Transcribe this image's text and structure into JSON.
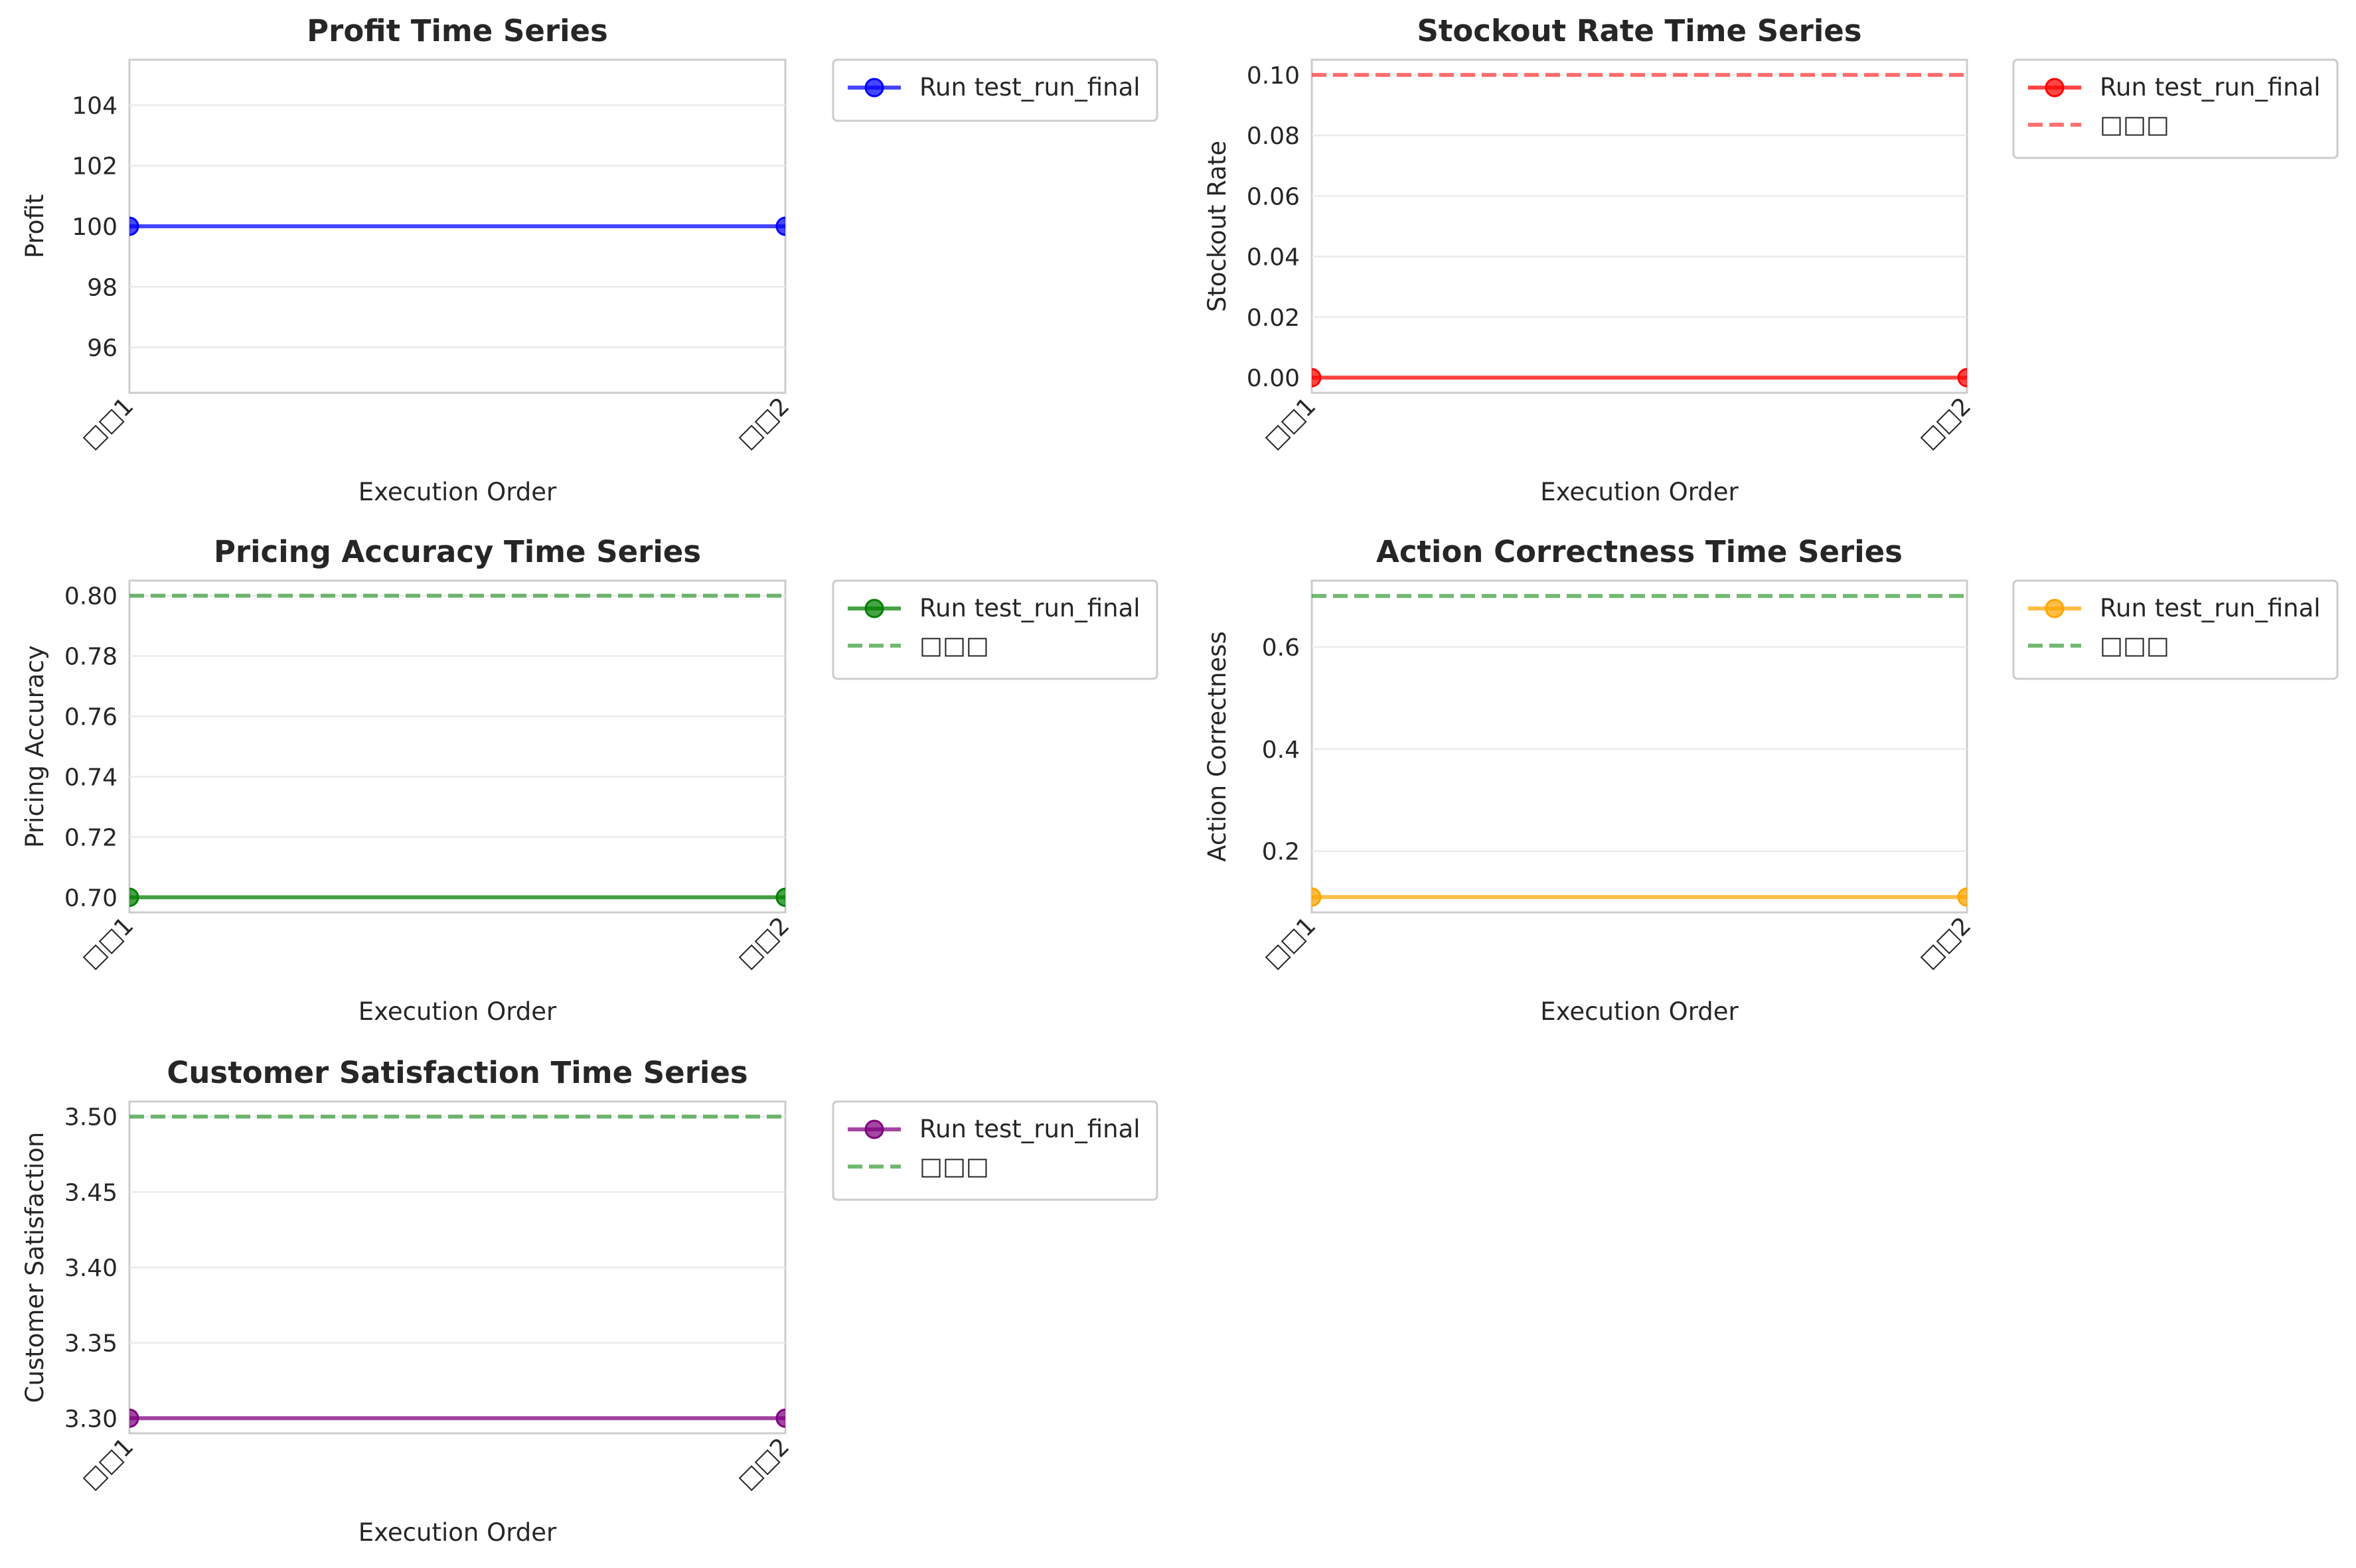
{
  "chart_data": [
    {
      "type": "line",
      "title": "Profit Time Series",
      "xlabel": "Execution Order",
      "ylabel": "Profit",
      "categories": [
        "□□1",
        "□□2"
      ],
      "ylim": [
        94.5,
        105.5
      ],
      "yticks": [
        96,
        98,
        100,
        102,
        104
      ],
      "ytick_labels": [
        "96",
        "98",
        "100",
        "102",
        "104"
      ],
      "grid": true,
      "legend_position": "outside-upper-right",
      "series": [
        {
          "name": "Run test_run_final",
          "values": [
            100,
            100
          ],
          "color": "#0000ff",
          "style": "solid-marker"
        }
      ]
    },
    {
      "type": "line",
      "title": "Stockout Rate Time Series",
      "xlabel": "Execution Order",
      "ylabel": "Stockout Rate",
      "categories": [
        "□□1",
        "□□2"
      ],
      "ylim": [
        -0.005,
        0.105
      ],
      "yticks": [
        0.0,
        0.02,
        0.04,
        0.06,
        0.08,
        0.1
      ],
      "ytick_labels": [
        "0.00",
        "0.02",
        "0.04",
        "0.06",
        "0.08",
        "0.10"
      ],
      "grid": true,
      "legend_position": "outside-upper-right",
      "series": [
        {
          "name": "Run test_run_final",
          "values": [
            0.0,
            0.0
          ],
          "color": "#ff0000",
          "style": "solid-marker"
        },
        {
          "name": "□□□",
          "values": [
            0.1,
            0.1
          ],
          "color": "#ff0000",
          "style": "dashed"
        }
      ]
    },
    {
      "type": "line",
      "title": "Pricing Accuracy Time Series",
      "xlabel": "Execution Order",
      "ylabel": "Pricing Accuracy",
      "categories": [
        "□□1",
        "□□2"
      ],
      "ylim": [
        0.695,
        0.805
      ],
      "yticks": [
        0.7,
        0.72,
        0.74,
        0.76,
        0.78,
        0.8
      ],
      "ytick_labels": [
        "0.70",
        "0.72",
        "0.74",
        "0.76",
        "0.78",
        "0.80"
      ],
      "grid": true,
      "legend_position": "outside-upper-right",
      "series": [
        {
          "name": "Run test_run_final",
          "values": [
            0.7,
            0.7
          ],
          "color": "#008000",
          "style": "solid-marker"
        },
        {
          "name": "□□□",
          "values": [
            0.8,
            0.8
          ],
          "color": "#008000",
          "style": "dashed"
        }
      ]
    },
    {
      "type": "line",
      "title": "Action Correctness Time Series",
      "xlabel": "Execution Order",
      "ylabel": "Action Correctness",
      "categories": [
        "□□1",
        "□□2"
      ],
      "ylim": [
        0.08,
        0.73
      ],
      "yticks": [
        0.2,
        0.4,
        0.6
      ],
      "ytick_labels": [
        "0.2",
        "0.4",
        "0.6"
      ],
      "grid": true,
      "legend_position": "outside-upper-right",
      "series": [
        {
          "name": "Run test_run_final",
          "values": [
            0.11,
            0.11
          ],
          "color": "#ffa500",
          "style": "solid-marker"
        },
        {
          "name": "□□□",
          "values": [
            0.7,
            0.7
          ],
          "color": "#008000",
          "style": "dashed"
        }
      ]
    },
    {
      "type": "line",
      "title": "Customer Satisfaction Time Series",
      "xlabel": "Execution Order",
      "ylabel": "Customer Satisfaction",
      "categories": [
        "□□1",
        "□□2"
      ],
      "ylim": [
        3.29,
        3.51
      ],
      "yticks": [
        3.3,
        3.35,
        3.4,
        3.45,
        3.5
      ],
      "ytick_labels": [
        "3.30",
        "3.35",
        "3.40",
        "3.45",
        "3.50"
      ],
      "grid": true,
      "legend_position": "outside-upper-right",
      "series": [
        {
          "name": "Run test_run_final",
          "values": [
            3.3,
            3.3
          ],
          "color": "#800080",
          "style": "solid-marker"
        },
        {
          "name": "□□□",
          "values": [
            3.5,
            3.5
          ],
          "color": "#008000",
          "style": "dashed"
        }
      ]
    }
  ]
}
